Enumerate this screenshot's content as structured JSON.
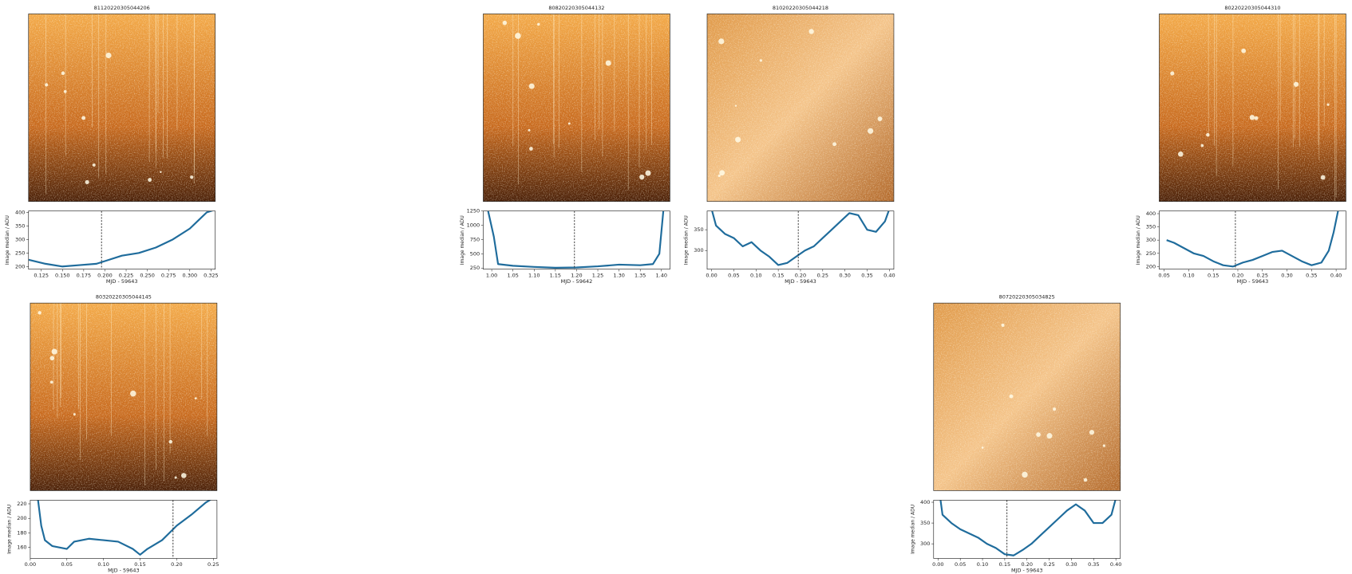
{
  "chart_data": [
    {
      "type": "line",
      "title": "81120220305044206",
      "xlabel": "MJD - 59643",
      "ylabel": "Image median / ADU",
      "color": "#1f6c9c",
      "vline": 0.196,
      "xlim": [
        0.11,
        0.33
      ],
      "ylim": [
        190,
        405
      ],
      "xticks": [
        0.125,
        {
          "value": 0.15,
          "label": "0.150"
        },
        0.175,
        {
          "value": 0.2,
          "label": "0.200"
        },
        0.225,
        {
          "value": 0.25,
          "label": "0.250"
        },
        0.275,
        {
          "value": 0.3,
          "label": "0.300"
        },
        0.325
      ],
      "yticks": [
        200,
        250,
        300,
        350,
        400
      ],
      "x": [
        0.11,
        0.13,
        0.15,
        0.17,
        0.19,
        0.2,
        0.22,
        0.24,
        0.26,
        0.28,
        0.3,
        0.31,
        0.32,
        0.33
      ],
      "values": [
        225,
        210,
        200,
        205,
        210,
        220,
        240,
        250,
        270,
        300,
        340,
        370,
        400,
        410
      ]
    },
    {
      "type": "line",
      "title": "80820220305044132",
      "xlabel": "MJD - 59642",
      "ylabel": "Image median / ADU",
      "color": "#1f6c9c",
      "vline": 1.195,
      "xlim": [
        0.98,
        1.42
      ],
      "ylim": [
        230,
        1250
      ],
      "xticks": [
        {
          "value": 1,
          "label": "1.00"
        },
        1.05,
        {
          "value": 1.1,
          "label": "1.10"
        },
        1.15,
        {
          "value": 1.2,
          "label": "1.20"
        },
        1.25,
        {
          "value": 1.3,
          "label": "1.30"
        },
        1.35,
        {
          "value": 1.4,
          "label": "1.40"
        }
      ],
      "yticks": [
        250,
        500,
        750,
        1000,
        1250
      ],
      "x": [
        0.99,
        1.005,
        1.015,
        1.05,
        1.1,
        1.15,
        1.2,
        1.25,
        1.3,
        1.35,
        1.38,
        1.395,
        1.405
      ],
      "values": [
        1300,
        800,
        320,
        290,
        270,
        255,
        260,
        280,
        310,
        300,
        320,
        500,
        1300
      ]
    },
    {
      "type": "line",
      "title": "81020220305044218",
      "xlabel": "MJD - 59643",
      "ylabel": "Image median / ADU",
      "color": "#1f6c9c",
      "vline": 0.195,
      "xlim": [
        -0.01,
        0.41
      ],
      "ylim": [
        255,
        395
      ],
      "xticks": [
        {
          "value": 0,
          "label": "0.00"
        },
        0.05,
        {
          "value": 0.1,
          "label": "0.10"
        },
        0.15,
        {
          "value": 0.2,
          "label": "0.20"
        },
        0.25,
        {
          "value": 0.3,
          "label": "0.30"
        },
        0.35,
        {
          "value": 0.4,
          "label": "0.40"
        }
      ],
      "yticks": [
        300,
        350
      ],
      "x": [
        0,
        0.01,
        0.03,
        0.05,
        0.07,
        0.09,
        0.11,
        0.13,
        0.15,
        0.17,
        0.19,
        0.21,
        0.23,
        0.25,
        0.27,
        0.29,
        0.31,
        0.33,
        0.35,
        0.37,
        0.39,
        0.4
      ],
      "values": [
        400,
        360,
        340,
        330,
        310,
        320,
        300,
        285,
        265,
        270,
        285,
        300,
        310,
        330,
        350,
        370,
        390,
        385,
        350,
        345,
        370,
        400
      ]
    },
    {
      "type": "line",
      "title": "80220220305044310",
      "xlabel": "MJD - 59643",
      "ylabel": "Image median / ADU",
      "color": "#1f6c9c",
      "vline": 0.195,
      "xlim": [
        0.04,
        0.42
      ],
      "ylim": [
        190,
        410
      ],
      "xticks": [
        0.05,
        {
          "value": 0.1,
          "label": "0.10"
        },
        0.15,
        {
          "value": 0.2,
          "label": "0.20"
        },
        0.25,
        {
          "value": 0.3,
          "label": "0.30"
        },
        0.35,
        {
          "value": 0.4,
          "label": "0.40"
        }
      ],
      "yticks": [
        200,
        250,
        300,
        350,
        400
      ],
      "x": [
        0.055,
        0.07,
        0.09,
        0.11,
        0.13,
        0.15,
        0.17,
        0.19,
        0.21,
        0.23,
        0.25,
        0.27,
        0.29,
        0.31,
        0.33,
        0.35,
        0.37,
        0.385,
        0.395,
        0.405
      ],
      "values": [
        300,
        290,
        270,
        250,
        240,
        220,
        205,
        200,
        215,
        225,
        240,
        255,
        260,
        240,
        220,
        205,
        215,
        260,
        330,
        420
      ]
    },
    {
      "type": "line",
      "title": "80320220305044145",
      "xlabel": "MJD - 59643",
      "ylabel": "Image median / ADU",
      "color": "#1f6c9c",
      "vline": 0.195,
      "xlim": [
        0,
        0.255
      ],
      "ylim": [
        145,
        225
      ],
      "xticks": [
        {
          "value": 0,
          "label": "0.00"
        },
        0.05,
        {
          "value": 0.1,
          "label": "0.10"
        },
        0.15,
        {
          "value": 0.2,
          "label": "0.20"
        },
        0.25
      ],
      "yticks": [
        160,
        180,
        200,
        220
      ],
      "x": [
        0.01,
        0.015,
        0.02,
        0.03,
        0.05,
        0.06,
        0.08,
        0.1,
        0.12,
        0.14,
        0.15,
        0.16,
        0.18,
        0.19,
        0.2,
        0.22,
        0.24,
        0.25
      ],
      "values": [
        230,
        190,
        170,
        162,
        158,
        168,
        172,
        170,
        168,
        158,
        150,
        158,
        170,
        180,
        190,
        205,
        222,
        228
      ]
    },
    {
      "type": "line",
      "title": "80720220305034825",
      "xlabel": "MJD - 59643",
      "ylabel": "Image median / ADU",
      "color": "#1f6c9c",
      "vline": 0.155,
      "xlim": [
        -0.01,
        0.41
      ],
      "ylim": [
        265,
        405
      ],
      "xticks": [
        {
          "value": 0,
          "label": "0.00"
        },
        0.05,
        {
          "value": 0.1,
          "label": "0.10"
        },
        0.15,
        {
          "value": 0.2,
          "label": "0.20"
        },
        0.25,
        {
          "value": 0.3,
          "label": "0.30"
        },
        0.35,
        {
          "value": 0.4,
          "label": "0.40"
        }
      ],
      "yticks": [
        300,
        350,
        400
      ],
      "x": [
        0.005,
        0.01,
        0.03,
        0.05,
        0.07,
        0.09,
        0.11,
        0.13,
        0.15,
        0.17,
        0.19,
        0.21,
        0.23,
        0.25,
        0.27,
        0.29,
        0.31,
        0.33,
        0.35,
        0.37,
        0.39,
        0.4
      ],
      "values": [
        410,
        370,
        350,
        335,
        325,
        315,
        300,
        290,
        275,
        272,
        285,
        300,
        320,
        340,
        360,
        380,
        395,
        380,
        350,
        350,
        370,
        410
      ]
    }
  ]
}
